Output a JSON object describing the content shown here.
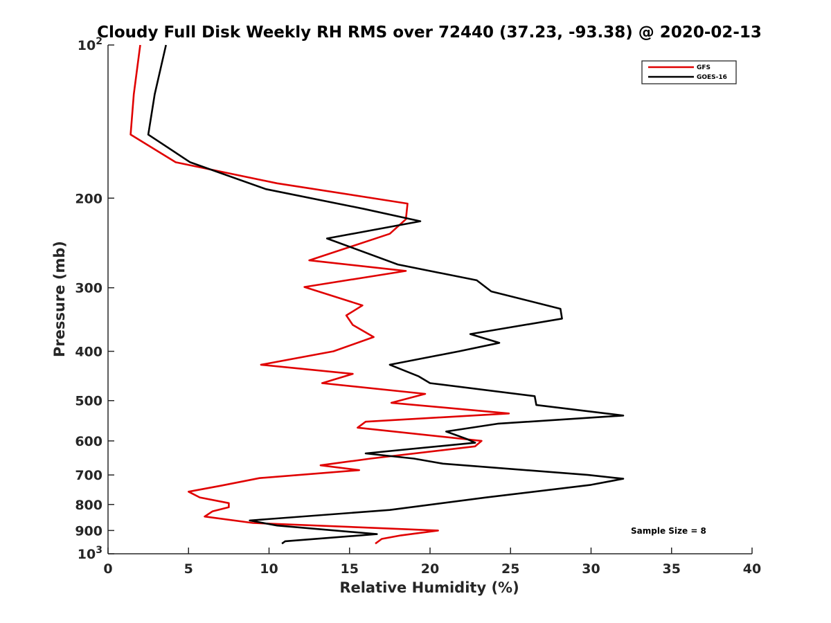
{
  "chart_data": {
    "type": "line",
    "title": "Cloudy Full Disk Weekly RH RMS over 72440 (37.23, -93.38) @ 2020-02-13",
    "xlabel": "Relative Humidity (%)",
    "ylabel": "Pressure (mb)",
    "xlim": [
      0,
      40
    ],
    "ylim": [
      100,
      1000
    ],
    "y_scale": "log",
    "y_reversed": true,
    "grid": false,
    "x_ticks": [
      "0",
      "5",
      "10",
      "15",
      "20",
      "25",
      "30",
      "35",
      "40"
    ],
    "y_ticks": [
      {
        "value": 100,
        "base": "10",
        "exp": "2"
      },
      {
        "value": 200,
        "label": "200"
      },
      {
        "value": 300,
        "label": "300"
      },
      {
        "value": 400,
        "label": "400"
      },
      {
        "value": 500,
        "label": "500"
      },
      {
        "value": 600,
        "label": "600"
      },
      {
        "value": 700,
        "label": "700"
      },
      {
        "value": 800,
        "label": "800"
      },
      {
        "value": 900,
        "label": "900"
      },
      {
        "value": 1000,
        "base": "10",
        "exp": "3"
      }
    ],
    "legend_position": "top-right",
    "annotation": "Sample Size = 8",
    "series": [
      {
        "name": "GFS",
        "color": "#e00000",
        "points": [
          [
            2.0,
            100
          ],
          [
            1.6,
            125
          ],
          [
            1.4,
            150
          ],
          [
            4.2,
            170
          ],
          [
            10.5,
            187
          ],
          [
            18.6,
            205
          ],
          [
            18.5,
            220
          ],
          [
            17.5,
            235
          ],
          [
            12.5,
            265
          ],
          [
            18.5,
            278
          ],
          [
            12.2,
            299
          ],
          [
            15.8,
            325
          ],
          [
            14.8,
            340
          ],
          [
            15.2,
            355
          ],
          [
            16.5,
            375
          ],
          [
            14.0,
            400
          ],
          [
            9.5,
            425
          ],
          [
            15.2,
            443
          ],
          [
            13.3,
            462
          ],
          [
            19.7,
            485
          ],
          [
            17.6,
            505
          ],
          [
            24.9,
            530
          ],
          [
            16.0,
            550
          ],
          [
            15.5,
            565
          ],
          [
            23.2,
            600
          ],
          [
            22.8,
            615
          ],
          [
            16.3,
            650
          ],
          [
            13.2,
            670
          ],
          [
            15.6,
            685
          ],
          [
            9.4,
            710
          ],
          [
            7.0,
            735
          ],
          [
            5.0,
            755
          ],
          [
            5.7,
            775
          ],
          [
            7.5,
            795
          ],
          [
            7.5,
            810
          ],
          [
            6.5,
            825
          ],
          [
            6.0,
            845
          ],
          [
            9.0,
            870
          ],
          [
            20.5,
            900
          ],
          [
            18.2,
            920
          ],
          [
            17.0,
            935
          ],
          [
            16.6,
            955
          ]
        ]
      },
      {
        "name": "GOES-16",
        "color": "#000000",
        "points": [
          [
            3.6,
            100
          ],
          [
            2.9,
            125
          ],
          [
            2.5,
            150
          ],
          [
            5.1,
            170
          ],
          [
            9.8,
            192
          ],
          [
            15.9,
            210
          ],
          [
            19.4,
            222
          ],
          [
            13.6,
            240
          ],
          [
            18.0,
            270
          ],
          [
            22.9,
            290
          ],
          [
            23.8,
            305
          ],
          [
            28.1,
            330
          ],
          [
            28.2,
            345
          ],
          [
            22.5,
            370
          ],
          [
            24.3,
            385
          ],
          [
            21.8,
            400
          ],
          [
            17.5,
            425
          ],
          [
            19.3,
            448
          ],
          [
            20.0,
            462
          ],
          [
            26.5,
            490
          ],
          [
            26.6,
            510
          ],
          [
            32.0,
            535
          ],
          [
            24.2,
            555
          ],
          [
            21.0,
            575
          ],
          [
            22.3,
            595
          ],
          [
            22.8,
            605
          ],
          [
            16.0,
            635
          ],
          [
            19.0,
            650
          ],
          [
            20.8,
            665
          ],
          [
            29.8,
            700
          ],
          [
            32.0,
            712
          ],
          [
            30.0,
            732
          ],
          [
            23.5,
            775
          ],
          [
            17.5,
            820
          ],
          [
            8.8,
            860
          ],
          [
            10.5,
            880
          ],
          [
            16.7,
            915
          ],
          [
            11.0,
            945
          ],
          [
            10.8,
            955
          ]
        ]
      }
    ]
  }
}
